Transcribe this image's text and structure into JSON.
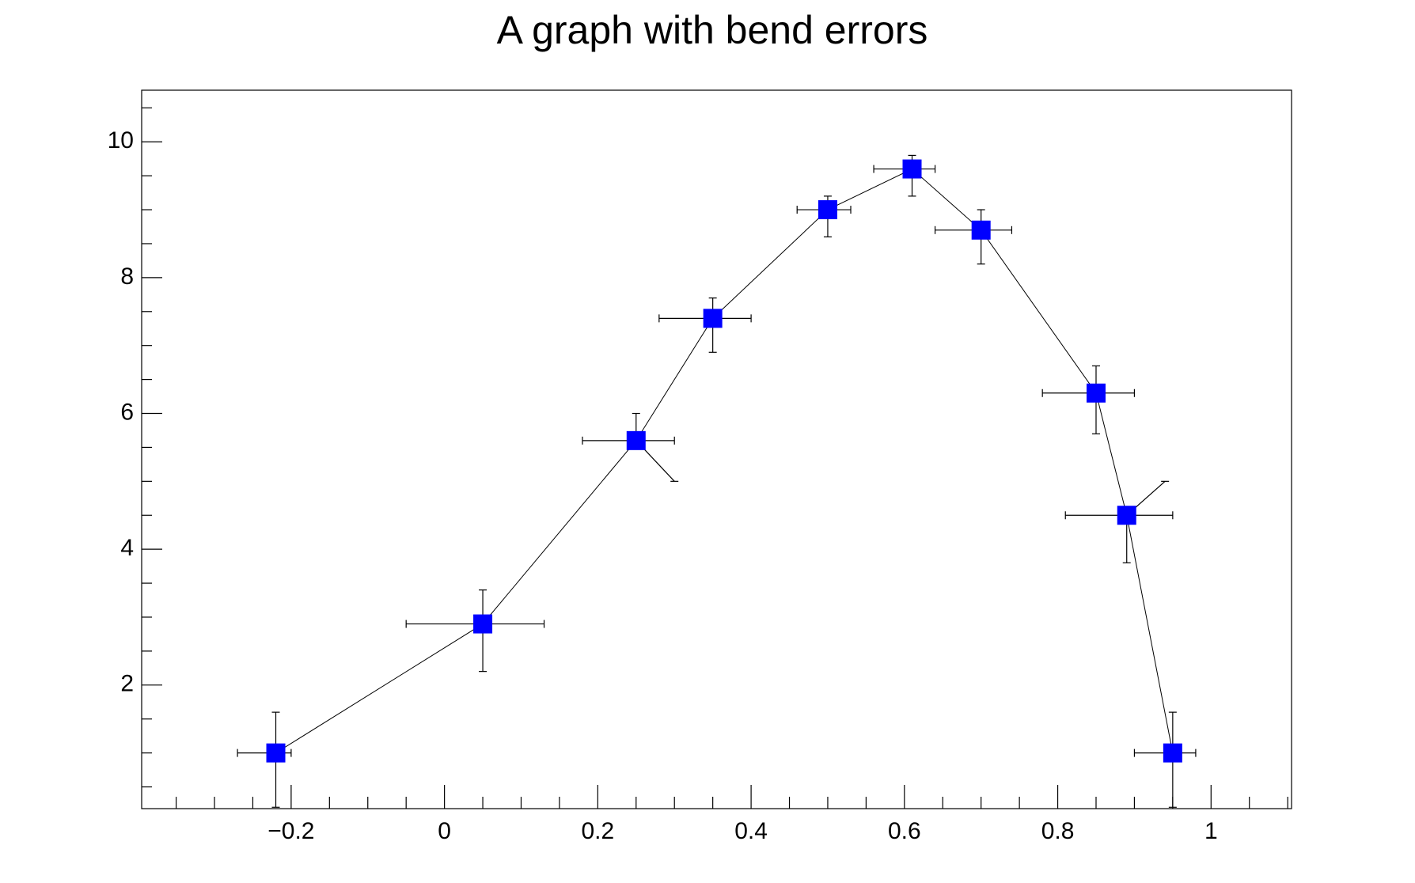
{
  "chart_data": {
    "type": "bent-error-graph",
    "title": "A graph with bend errors",
    "series": [
      {
        "color": "#0000ff",
        "x": [
          -0.22,
          0.05,
          0.25,
          0.35,
          0.5,
          0.61,
          0.7,
          0.85,
          0.89,
          0.95
        ],
        "values": [
          1,
          2.9,
          5.6,
          7.4,
          9,
          9.6,
          8.7,
          6.3,
          4.5,
          1
        ],
        "exl": [
          0.05,
          0.1,
          0.07,
          0.07,
          0.04,
          0.05,
          0.06,
          0.07,
          0.08,
          0.05
        ],
        "exh": [
          0.02,
          0.08,
          0.05,
          0.05,
          0.03,
          0.03,
          0.04,
          0.05,
          0.06,
          0.03
        ],
        "eyl": [
          0.8,
          0.7,
          0.6,
          0.5,
          0.4,
          0.4,
          0.5,
          0.6,
          0.7,
          0.8
        ],
        "eyh": [
          0.6,
          0.5,
          0.4,
          0.3,
          0.2,
          0.2,
          0.3,
          0.4,
          0.5,
          0.6
        ],
        "exld": [
          0,
          0,
          0,
          0,
          0,
          0,
          0,
          0,
          0,
          0
        ],
        "exhd": [
          0,
          0,
          0,
          0,
          0,
          0,
          0,
          0,
          0,
          0
        ],
        "eyld": [
          0,
          0,
          0.05,
          0,
          0,
          0,
          0,
          0,
          0,
          0
        ],
        "eyhd": [
          0,
          0,
          0,
          0,
          0,
          0,
          0,
          0,
          0.05,
          0
        ]
      }
    ],
    "xlim": [
      -0.395,
      1.105
    ],
    "xticks": [
      {
        "value": -0.2,
        "label": "−0.2"
      },
      0,
      0.2,
      0.4,
      0.6,
      0.8,
      1
    ],
    "ylim": [
      0.18,
      10.76
    ],
    "yticks": [
      2,
      4,
      6,
      8,
      10
    ]
  }
}
